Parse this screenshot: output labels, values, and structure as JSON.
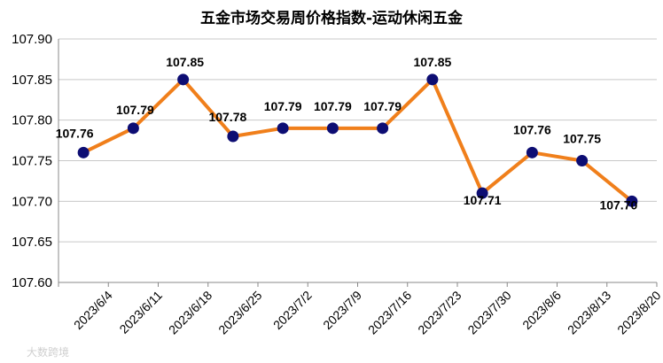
{
  "chart_data": {
    "type": "line",
    "title": "五金市场交易周价格指数-运动休闲五金",
    "xlabel": "",
    "ylabel": "",
    "categories": [
      "2023/6/4",
      "2023/6/11",
      "2023/6/18",
      "2023/6/25",
      "2023/7/2",
      "2023/7/9",
      "2023/7/16",
      "2023/7/23",
      "2023/7/30",
      "2023/8/6",
      "2023/8/13",
      "2023/8/20"
    ],
    "series": [
      {
        "values": [
          107.76,
          107.79,
          107.85,
          107.78,
          107.79,
          107.79,
          107.79,
          107.85,
          107.71,
          107.76,
          107.75,
          107.7
        ]
      }
    ],
    "data_labels": [
      "107.76",
      "107.79",
      "107.85",
      "107.78",
      "107.79",
      "107.79",
      "107.79",
      "107.85",
      "107.71",
      "107.76",
      "107.75",
      "107.70"
    ],
    "ylim": [
      107.6,
      107.9
    ],
    "yticks": [
      "107.60",
      "107.65",
      "107.70",
      "107.75",
      "107.80",
      "107.85",
      "107.90"
    ],
    "grid": true,
    "legend": "none",
    "colors": {
      "line": "#f07f1b",
      "marker": "#0d0d73",
      "grid": "#c8c8c8"
    }
  },
  "watermark": "大数跨境"
}
